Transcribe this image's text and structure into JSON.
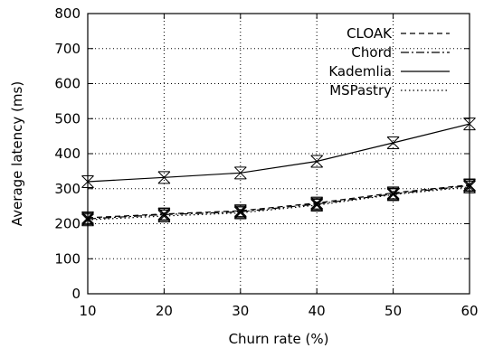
{
  "chart_data": {
    "type": "line",
    "xlabel": "Churn rate (%)",
    "ylabel": "Average latency (ms)",
    "x": [
      10,
      20,
      30,
      40,
      50,
      60
    ],
    "xlim": [
      10,
      60
    ],
    "ylim": [
      0,
      800
    ],
    "xticks": [
      10,
      20,
      30,
      40,
      50,
      60
    ],
    "yticks": [
      0,
      100,
      200,
      300,
      400,
      500,
      600,
      700,
      800
    ],
    "grid": true,
    "legend_position": "top-right",
    "series": [
      {
        "name": "CLOAK",
        "line_style": "dashed",
        "values": [
          217,
          228,
          237,
          259,
          288,
          311
        ]
      },
      {
        "name": "Chord",
        "line_style": "dash-dot",
        "values": [
          214,
          226,
          234,
          256,
          285,
          309
        ]
      },
      {
        "name": "Kademlia",
        "line_style": "solid",
        "values": [
          320,
          332,
          345,
          378,
          431,
          485
        ]
      },
      {
        "name": "MSPastry",
        "line_style": "dotted",
        "values": [
          211,
          222,
          231,
          253,
          283,
          305
        ]
      }
    ]
  }
}
